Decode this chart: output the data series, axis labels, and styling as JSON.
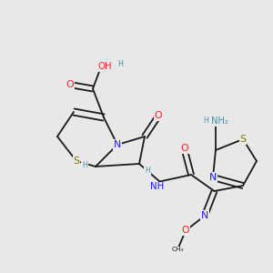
{
  "bg_color": "#e8e8e8",
  "atom_colors": {
    "C": "#1a1a1a",
    "N": "#1a1aff",
    "O": "#ff2020",
    "S": "#7a7a00",
    "H": "#4a8fa0"
  },
  "bond_color": "#1a1a1a",
  "font_size": 6.8,
  "figsize": [
    3.0,
    3.0
  ],
  "dpi": 100,
  "xlim": [
    0,
    10
  ],
  "ylim": [
    0,
    10
  ]
}
